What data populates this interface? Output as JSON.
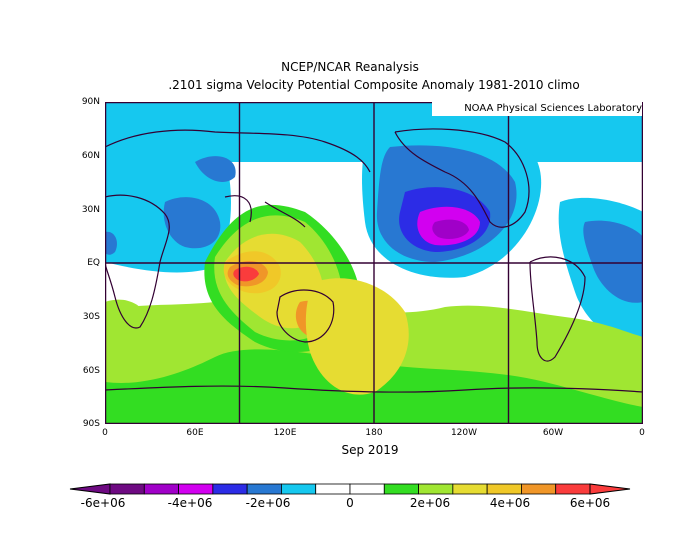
{
  "title": "NCEP/NCAR Reanalysis",
  "subtitle": ".2101 sigma Velocity Potential  Composite Anomaly 1981-2010 climo",
  "credit": "NOAA Physical Sciences Laboratory",
  "date_label": "Sep 2019",
  "x_ticks": [
    "0",
    "60E",
    "120E",
    "180",
    "120W",
    "60W",
    "0"
  ],
  "y_ticks": [
    "90N",
    "60N",
    "30N",
    "EQ",
    "30S",
    "60S",
    "90S"
  ],
  "colorbar": {
    "labels": [
      "-6e+06",
      "-4e+06",
      "-2e+06",
      "0",
      "2e+06",
      "4e+06",
      "6e+06"
    ],
    "colors": [
      "#6e0a82",
      "#a000c8",
      "#d200f0",
      "#2c2ce6",
      "#2878d2",
      "#16c8ef",
      "#ffffff",
      "#ffffff",
      "#33dd22",
      "#a0e632",
      "#e6dc32",
      "#f0c828",
      "#f09628",
      "#fa3c3c"
    ]
  },
  "map": {
    "projection": "equirectangular",
    "lon_range": [
      0,
      360
    ],
    "lat_range": [
      -90,
      90
    ],
    "grid_lines": {
      "lons": [
        90,
        180,
        270
      ],
      "lats": [
        0
      ]
    },
    "coast_color": "#330033"
  }
}
